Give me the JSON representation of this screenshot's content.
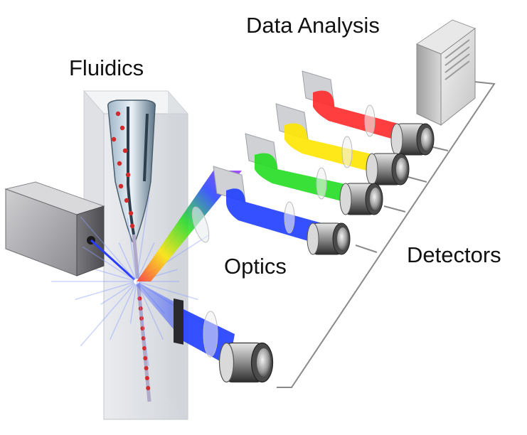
{
  "labels": {
    "data_analysis": "Data Analysis",
    "fluidics": "Fluidics",
    "optics": "Optics",
    "detectors": "Detectors"
  },
  "colors": {
    "laser_beam": "#2a3cff",
    "channel_red": "#ff2a2a",
    "channel_yellow": "#ffe600",
    "channel_green": "#22dd22",
    "channel_blue": "#1f3dff",
    "scatter_blue": "#1f3dff",
    "cells": "#d42a2a",
    "wire": "#8a8a8a"
  },
  "icons": {
    "laser": "laser-source-icon",
    "flow_cell": "flow-cell-icon",
    "computer": "computer-tower-icon",
    "detector": "detector-camera-icon",
    "mirror": "dichroic-mirror-icon",
    "lens": "lens-icon"
  }
}
